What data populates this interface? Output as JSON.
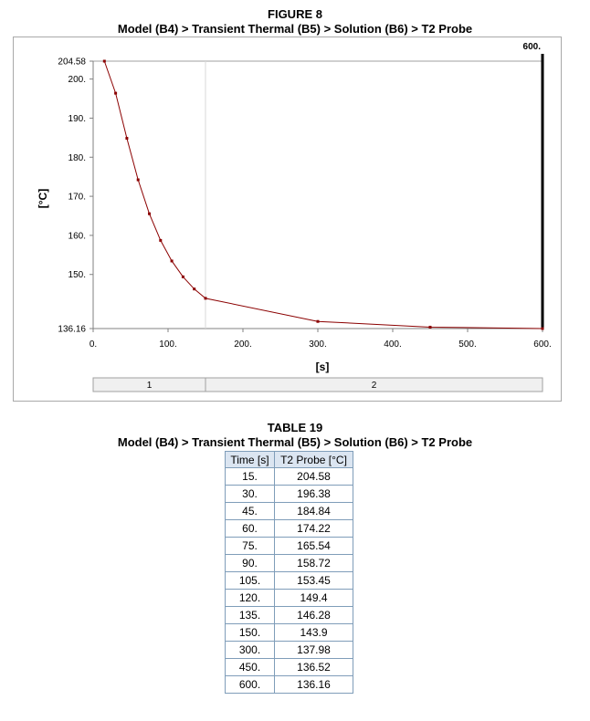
{
  "figure": {
    "number": "FIGURE 8",
    "title": "Model (B4) > Transient Thermal (B5) > Solution (B6) > T2 Probe"
  },
  "table": {
    "number": "TABLE 19",
    "title": "Model (B4) > Transient Thermal (B5) > Solution (B6) > T2 Probe",
    "headers": [
      "Time [s]",
      "T2 Probe [°C]"
    ],
    "rows": [
      [
        "15.",
        "204.58"
      ],
      [
        "30.",
        "196.38"
      ],
      [
        "45.",
        "184.84"
      ],
      [
        "60.",
        "174.22"
      ],
      [
        "75.",
        "165.54"
      ],
      [
        "90.",
        "158.72"
      ],
      [
        "105.",
        "153.45"
      ],
      [
        "120.",
        "149.4"
      ],
      [
        "135.",
        "146.28"
      ],
      [
        "150.",
        "143.9"
      ],
      [
        "300.",
        "137.98"
      ],
      [
        "450.",
        "136.52"
      ],
      [
        "600.",
        "136.16"
      ]
    ]
  },
  "chart_data": {
    "type": "line",
    "title": "Model (B4) > Transient Thermal (B5) > Solution (B6) > T2 Probe",
    "xlabel": "[s]",
    "ylabel": "[°C]",
    "xlim": [
      0,
      600
    ],
    "ylim": [
      136.16,
      204.58
    ],
    "x_ticks": [
      0,
      100,
      200,
      300,
      400,
      500,
      600
    ],
    "x_tick_labels": [
      "0.",
      "100.",
      "200.",
      "300.",
      "400.",
      "500.",
      "600."
    ],
    "y_ticks": [
      136.16,
      150,
      160,
      170,
      180,
      190,
      200,
      204.58
    ],
    "y_tick_labels": [
      "136.16",
      "150.",
      "160.",
      "170.",
      "180.",
      "190.",
      "200.",
      "204.58"
    ],
    "series": [
      {
        "name": "T2 Probe",
        "color": "#8b0000",
        "x": [
          15,
          30,
          45,
          60,
          75,
          90,
          105,
          120,
          135,
          150,
          300,
          450,
          600
        ],
        "y": [
          204.58,
          196.38,
          184.84,
          174.22,
          165.54,
          158.72,
          153.45,
          149.4,
          146.28,
          143.9,
          137.98,
          136.52,
          136.16
        ]
      }
    ],
    "step_boundary": 150,
    "current_time": 600,
    "current_time_label": "600.",
    "steps": [
      {
        "label": "1",
        "start": 0,
        "end": 150
      },
      {
        "label": "2",
        "start": 150,
        "end": 600
      }
    ]
  }
}
